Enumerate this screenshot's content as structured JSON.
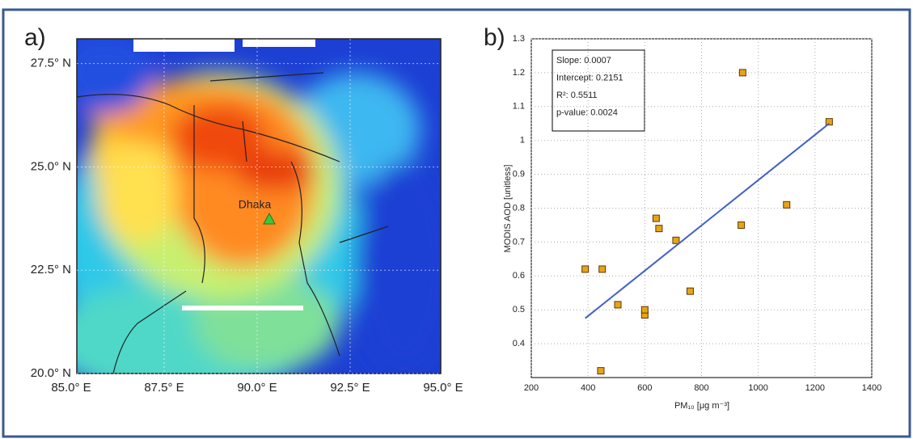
{
  "chart_data": [
    {
      "type": "map",
      "panel_label": "a)",
      "xlim": [
        85,
        95
      ],
      "ylim": [
        20,
        28.1
      ],
      "xticks": [
        {
          "value": 85,
          "label": "85.0° E"
        },
        {
          "value": 87.5,
          "label": "87.5° E"
        },
        {
          "value": 90,
          "label": "90.0° E"
        },
        {
          "value": 92.5,
          "label": "92.5° E"
        },
        {
          "value": 95,
          "label": "95.0° E"
        }
      ],
      "yticks": [
        {
          "value": 20,
          "label": "20.0° N"
        },
        {
          "value": 22.5,
          "label": "22.5° N"
        },
        {
          "value": 25,
          "label": "25.0° N"
        },
        {
          "value": 27.5,
          "label": "27.5° N"
        }
      ],
      "annotation": "Dhaka",
      "grid": true
    },
    {
      "type": "scatter",
      "panel_label": "b)",
      "xlabel": "PM₁₀ [μg m⁻³]",
      "ylabel": "MODIS AOD [unitless]",
      "xlim": [
        200,
        1400
      ],
      "ylim": [
        0.3,
        1.3
      ],
      "xticks": [
        200,
        400,
        600,
        800,
        1000,
        1200,
        1400
      ],
      "yticks": [
        0.4,
        0.5,
        0.6,
        0.7,
        0.8,
        0.9,
        1,
        1.1,
        1.2,
        1.3
      ],
      "annotations": [
        "Slope: 0.0007",
        "Intercept: 0.2151",
        "R²: 0.5511",
        "p-value: 0.0024"
      ],
      "grid": true,
      "series": [
        {
          "color": "#e8a418",
          "x": [
            390,
            450,
            445,
            505,
            600,
            600,
            640,
            650,
            710,
            760,
            940,
            945,
            1100,
            1250
          ],
          "values": [
            0.62,
            0.62,
            0.32,
            0.515,
            0.485,
            0.5,
            0.77,
            0.74,
            0.705,
            0.555,
            0.75,
            1.2,
            0.81,
            1.055
          ]
        },
        {
          "color": "#4060c8",
          "line": true,
          "x": [
            390,
            1250
          ],
          "values": [
            0.475,
            1.05
          ]
        }
      ]
    }
  ]
}
